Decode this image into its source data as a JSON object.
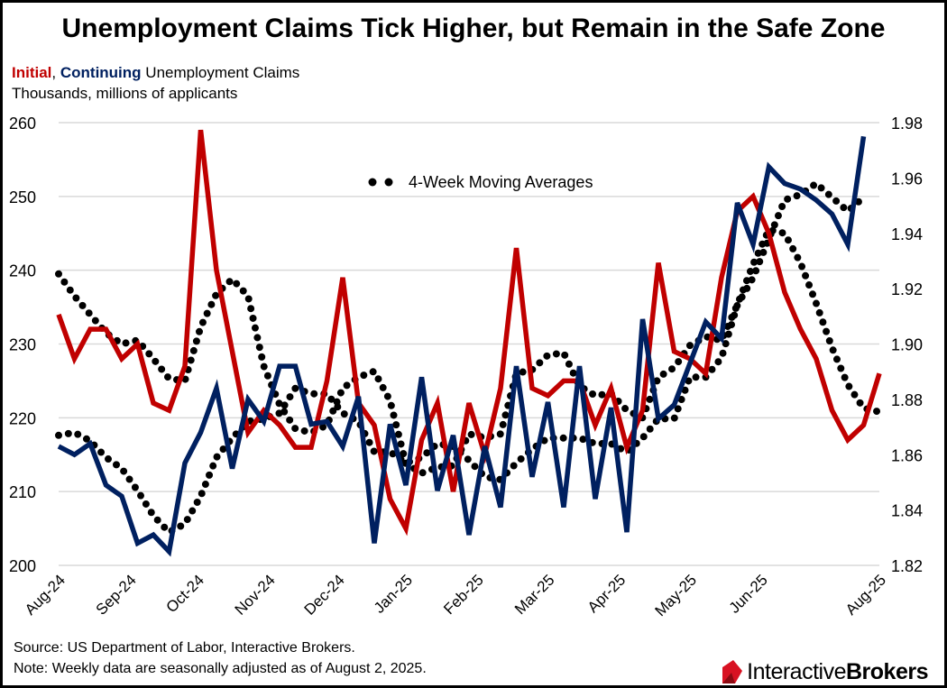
{
  "title": "Unemployment Claims Tick Higher, but Remain in the Safe Zone",
  "subtitle": {
    "initial": "Initial",
    "sep": ", ",
    "continuing": "Continuing",
    "rest": " Unemployment Claims",
    "units": "Thousands, millions of applicants"
  },
  "source": "Source: US Department of Labor, Interactive Brokers.",
  "note": "Note: Weekly data are seasonally adjusted as of August 2, 2025.",
  "logo": {
    "part1": "Interactive",
    "part2": "Brokers"
  },
  "colors": {
    "initial": "#C00000",
    "continuing": "#002060",
    "ma": "#000000",
    "grid": "#D9D9D9"
  },
  "chart_data": {
    "type": "line",
    "title": "Unemployment Claims Tick Higher, but Remain in the Safe Zone",
    "annotation": "4-Week Moving Averages",
    "x_tick_labels": [
      "Aug-24",
      "Sep-24",
      "Oct-24",
      "Nov-24",
      "Dec-24",
      "Jan-25",
      "Feb-25",
      "Mar-25",
      "Apr-25",
      "May-25",
      "Jun-25",
      "Aug-25"
    ],
    "x_tick_weeks": [
      0,
      4.5,
      8.8,
      13.3,
      17.7,
      22,
      26.5,
      31,
      35.5,
      40,
      44.5,
      52
    ],
    "left_axis": {
      "label": "Thousands",
      "ylim": [
        200,
        260
      ],
      "ticks": [
        "200",
        "210",
        "220",
        "230",
        "240",
        "250",
        "260"
      ]
    },
    "right_axis": {
      "label": "Millions",
      "ylim": [
        1.82,
        1.98
      ],
      "ticks": [
        "1.82",
        "1.84",
        "1.86",
        "1.88",
        "1.90",
        "1.92",
        "1.94",
        "1.96",
        "1.98"
      ]
    },
    "grid": true,
    "series": [
      {
        "name": "Initial",
        "axis": "left",
        "values": [
          234,
          228,
          232,
          232,
          228,
          230,
          222,
          221,
          227,
          259,
          240,
          229,
          218,
          221,
          219,
          216,
          216,
          225,
          239,
          222,
          219,
          209,
          205,
          217,
          222,
          210,
          222,
          215,
          224,
          243,
          224,
          223,
          225,
          225,
          219,
          224,
          216,
          221,
          241,
          229,
          228,
          226,
          239,
          248,
          250,
          245,
          237,
          232,
          228,
          221,
          217,
          219,
          226
        ]
      },
      {
        "name": "Initial 4-Week Moving Average",
        "axis": "left",
        "values": [
          239.5,
          236.5,
          234,
          231.5,
          230,
          230.5,
          228,
          225.3,
          225,
          232.3,
          236.8,
          238.8,
          236.5,
          227,
          221.8,
          218.5,
          218,
          219,
          224,
          225.5,
          226.3,
          222.3,
          213.8,
          212.5,
          213.3,
          213.5,
          217.8,
          217.3,
          217.8,
          226,
          226.5,
          228.5,
          228.8,
          224.3,
          223,
          223.3,
          221,
          220,
          225.5,
          226.8,
          229.8,
          231,
          230.5,
          235.3,
          240.8,
          245.5,
          245,
          241,
          235.5,
          229.5,
          224.5,
          221.3,
          220.8
        ]
      },
      {
        "name": "Continuing",
        "axis": "right",
        "values": [
          1.863,
          1.86,
          1.864,
          1.849,
          1.845,
          1.828,
          1.831,
          1.825,
          1.857,
          1.868,
          1.884,
          1.855,
          1.88,
          1.872,
          1.892,
          1.892,
          1.871,
          1.872,
          1.863,
          1.881,
          1.828,
          1.871,
          1.849,
          1.888,
          1.847,
          1.867,
          1.831,
          1.863,
          1.841,
          1.892,
          1.852,
          1.879,
          1.841,
          1.892,
          1.844,
          1.877,
          1.832,
          1.909,
          1.873,
          1.878,
          1.893,
          1.908,
          1.902,
          1.951,
          1.936,
          1.964,
          1.958,
          1.956,
          1.952,
          1.947,
          1.936,
          1.975
        ]
      },
      {
        "name": "Continuing 4-Week Moving Average",
        "axis": "right",
        "values": [
          1.867,
          1.868,
          1.865,
          1.859,
          1.855,
          1.847,
          1.838,
          1.832,
          1.835,
          1.845,
          1.859,
          1.866,
          1.872,
          1.873,
          1.875,
          1.884,
          1.882,
          1.882,
          1.875,
          1.872,
          1.861,
          1.861,
          1.857,
          1.859,
          1.864,
          1.863,
          1.858,
          1.852,
          1.851,
          1.857,
          1.862,
          1.866,
          1.866,
          1.866,
          1.864,
          1.864,
          1.861,
          1.866,
          1.873,
          1.873,
          1.888,
          1.888,
          1.895,
          1.914,
          1.924,
          1.938,
          1.952,
          1.954,
          1.958,
          1.953,
          1.948,
          1.953
        ]
      }
    ]
  }
}
